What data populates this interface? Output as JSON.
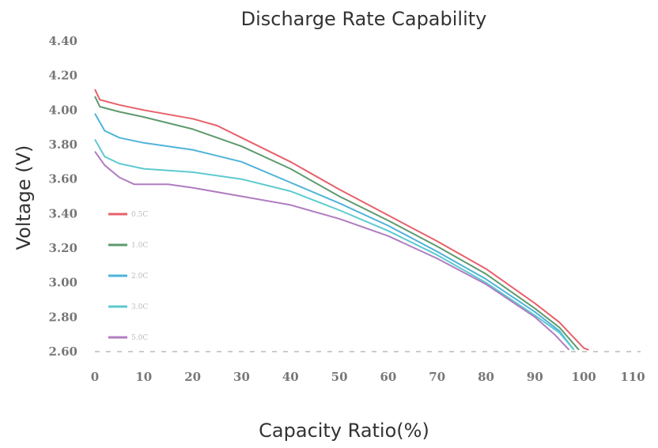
{
  "chart_data": {
    "type": "line",
    "title": "Discharge Rate Capability",
    "xlabel": "Capacity Ratio(%)",
    "ylabel": "Voltage  (V)",
    "xlim": [
      0,
      110
    ],
    "ylim": [
      2.6,
      4.4
    ],
    "xticks": [
      "0",
      "10",
      "20",
      "30",
      "40",
      "50",
      "60",
      "70",
      "80",
      "90",
      "100",
      "110"
    ],
    "yticks": [
      "4.40",
      "4.20",
      "4.00",
      "3.80",
      "3.60",
      "3.40",
      "3.20",
      "3.00",
      "2.80",
      "2.60"
    ],
    "grid": false,
    "legend_position": "left-middle",
    "series": [
      {
        "name": "0.5C",
        "color": "#e8606a",
        "x": [
          0,
          1,
          5,
          10,
          20,
          25,
          30,
          40,
          50,
          60,
          70,
          80,
          90,
          95,
          100,
          101
        ],
        "y": [
          4.12,
          4.06,
          4.03,
          4.0,
          3.95,
          3.91,
          3.84,
          3.7,
          3.54,
          3.39,
          3.24,
          3.08,
          2.88,
          2.77,
          2.62,
          2.61
        ]
      },
      {
        "name": "1.0C",
        "color": "#5f9a6e",
        "x": [
          0,
          1,
          5,
          10,
          20,
          30,
          40,
          50,
          60,
          70,
          80,
          90,
          95,
          99
        ],
        "y": [
          4.08,
          4.02,
          3.99,
          3.96,
          3.89,
          3.79,
          3.66,
          3.5,
          3.36,
          3.21,
          3.05,
          2.85,
          2.74,
          2.61
        ]
      },
      {
        "name": "2.0C",
        "color": "#4fb3d9",
        "x": [
          0,
          2,
          5,
          10,
          20,
          30,
          40,
          50,
          60,
          70,
          80,
          90,
          95,
          98
        ],
        "y": [
          3.98,
          3.88,
          3.84,
          3.81,
          3.77,
          3.7,
          3.58,
          3.46,
          3.33,
          3.18,
          3.02,
          2.83,
          2.72,
          2.61
        ]
      },
      {
        "name": "3.0C",
        "color": "#5dcad0",
        "x": [
          0,
          2,
          5,
          10,
          20,
          30,
          40,
          50,
          60,
          70,
          80,
          90,
          95,
          98
        ],
        "y": [
          3.83,
          3.73,
          3.69,
          3.66,
          3.64,
          3.6,
          3.53,
          3.42,
          3.3,
          3.16,
          3.0,
          2.81,
          2.71,
          2.61
        ]
      },
      {
        "name": "5.0C",
        "color": "#b07cc0",
        "x": [
          0,
          2,
          5,
          8,
          15,
          20,
          30,
          40,
          50,
          60,
          70,
          80,
          90,
          94,
          97
        ],
        "y": [
          3.76,
          3.68,
          3.61,
          3.57,
          3.57,
          3.55,
          3.5,
          3.45,
          3.37,
          3.27,
          3.14,
          2.99,
          2.8,
          2.7,
          2.61
        ]
      }
    ]
  }
}
